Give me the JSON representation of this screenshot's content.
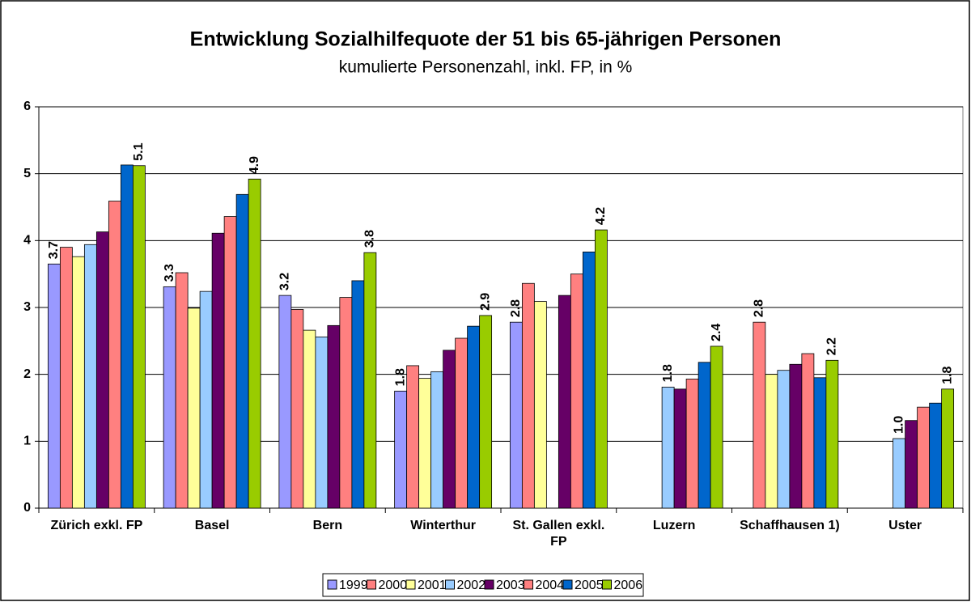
{
  "chart_data": {
    "type": "bar",
    "title": "Entwicklung Sozialhilfequote der 51 bis 65-jährigen Personen",
    "subtitle": "kumulierte Personenzahl, inkl. FP, in %",
    "categories": [
      "Zürich exkl. FP",
      "Basel",
      "Bern",
      "Winterthur",
      "St. Gallen exkl. FP",
      "Luzern",
      "Schaffhausen 1)",
      "Uster"
    ],
    "series": [
      {
        "name": "1999",
        "color": "#9999ff",
        "values": [
          3.65,
          3.31,
          3.18,
          1.75,
          2.78,
          null,
          null,
          null
        ],
        "value_labels": [
          "3.7",
          "3.3",
          "3.2",
          "1.8",
          "2.8",
          null,
          null,
          null
        ]
      },
      {
        "name": "2000",
        "color": "#ff8080",
        "values": [
          3.9,
          3.52,
          2.97,
          2.13,
          3.36,
          null,
          2.78,
          null
        ],
        "value_labels": [
          null,
          null,
          null,
          null,
          null,
          null,
          "2.8",
          null
        ]
      },
      {
        "name": "2001",
        "color": "#ffff99",
        "values": [
          3.76,
          2.99,
          2.66,
          1.94,
          3.09,
          null,
          2.0,
          null
        ]
      },
      {
        "name": "2002",
        "color": "#99ccff",
        "values": [
          3.94,
          3.24,
          2.56,
          2.04,
          null,
          1.81,
          2.06,
          1.04
        ],
        "value_labels": [
          null,
          null,
          null,
          null,
          null,
          "1.8",
          null,
          "1.0"
        ]
      },
      {
        "name": "2003",
        "color": "#660066",
        "values": [
          4.13,
          4.11,
          2.73,
          2.36,
          3.18,
          1.78,
          2.15,
          1.31
        ]
      },
      {
        "name": "2004",
        "color": "#ff8080",
        "values": [
          4.59,
          4.36,
          3.15,
          2.54,
          3.5,
          1.93,
          2.31,
          1.51
        ]
      },
      {
        "name": "2005",
        "color": "#0066cc",
        "values": [
          5.13,
          4.69,
          3.4,
          2.72,
          3.83,
          2.18,
          1.95,
          1.57
        ]
      },
      {
        "name": "2006",
        "color": "#99cc00",
        "values": [
          5.12,
          4.92,
          3.82,
          2.88,
          4.16,
          2.42,
          2.21,
          1.78
        ],
        "value_labels": [
          "5.1",
          "4.9",
          "3.8",
          "2.9",
          "4.2",
          "2.4",
          "2.2",
          "1.8"
        ]
      }
    ],
    "ylim": [
      0,
      6
    ],
    "yticks": [
      0,
      1,
      2,
      3,
      4,
      5,
      6
    ],
    "grid": true,
    "legend": "bottom"
  }
}
